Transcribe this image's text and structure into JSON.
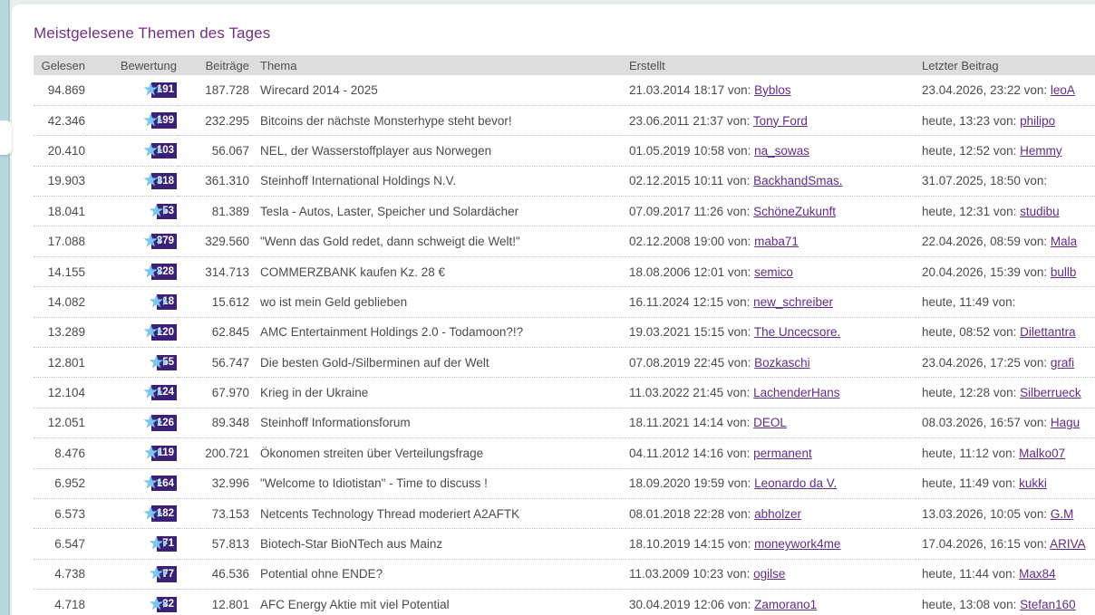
{
  "page": {
    "title": "Meistgelesene Themen des Tages"
  },
  "colors": {
    "title_purple": "#733080",
    "link_purple": "#632c87",
    "badge_bg": "#3b2077",
    "star_blue": "#7cc5f0",
    "rail_teal": "#b7d9dd",
    "header_bg": "#dcdddc"
  },
  "icons": {
    "rating_star": "star-icon"
  },
  "table": {
    "columns": [
      "Gelesen",
      "Bewertung",
      "Beiträge",
      "Thema",
      "Erstellt",
      "Letzter Beitrag"
    ],
    "von_label": "von:",
    "rows": [
      {
        "gelesen": "94.869",
        "rating": "191",
        "beitraege": "187.728",
        "thema": "Wirecard 2014 - 2025",
        "erstellt_date": "21.03.2014 18:17",
        "erstellt_user": "Byblos",
        "letzter_date": "23.04.2026, 23:22",
        "letzter_user": "leoA"
      },
      {
        "gelesen": "42.346",
        "rating": "199",
        "beitraege": "232.295",
        "thema": "Bitcoins der nächste Monsterhype steht bevor!",
        "erstellt_date": "23.06.2011 21:37",
        "erstellt_user": "Tony Ford",
        "letzter_date": "heute, 13:23",
        "letzter_user": "philipo"
      },
      {
        "gelesen": "20.410",
        "rating": "103",
        "beitraege": "56.067",
        "thema": "NEL, der Wasserstoffplayer aus Norwegen",
        "erstellt_date": "01.05.2019 10:58",
        "erstellt_user": "na_sowas",
        "letzter_date": "heute, 12:52",
        "letzter_user": "Hemmy"
      },
      {
        "gelesen": "19.903",
        "rating": "318",
        "beitraege": "361.310",
        "thema": "Steinhoff International Holdings N.V.",
        "erstellt_date": "02.12.2015 10:11",
        "erstellt_user": "BackhandSmas.",
        "letzter_date": "31.07.2025, 18:50",
        "letzter_user": ""
      },
      {
        "gelesen": "18.041",
        "rating": "53",
        "beitraege": "81.389",
        "thema": "Tesla - Autos, Laster, Speicher und Solardächer",
        "erstellt_date": "07.09.2017 11:26",
        "erstellt_user": "SchöneZukunft",
        "letzter_date": "heute, 12:31",
        "letzter_user": "studibu"
      },
      {
        "gelesen": "17.088",
        "rating": "379",
        "beitraege": "329.560",
        "thema": "\"Wenn das Gold redet, dann schweigt die Welt!\"",
        "erstellt_date": "02.12.2008 19:00",
        "erstellt_user": "maba71",
        "letzter_date": "22.04.2026, 08:59",
        "letzter_user": "Mala"
      },
      {
        "gelesen": "14.155",
        "rating": "328",
        "beitraege": "314.713",
        "thema": "COMMERZBANK kaufen Kz. 28 €",
        "erstellt_date": "18.08.2006 12:01",
        "erstellt_user": "semico",
        "letzter_date": "20.04.2026, 15:39",
        "letzter_user": "bullb"
      },
      {
        "gelesen": "14.082",
        "rating": "18",
        "beitraege": "15.612",
        "thema": "wo ist mein Geld geblieben",
        "erstellt_date": "16.11.2024 12:15",
        "erstellt_user": "new_schreiber",
        "letzter_date": "heute, 11:49",
        "letzter_user": ""
      },
      {
        "gelesen": "13.289",
        "rating": "120",
        "beitraege": "62.845",
        "thema": "AMC Entertainment Holdings 2.0 - Todamoon?!?",
        "erstellt_date": "19.03.2021 15:15",
        "erstellt_user": "The Uncecsore.",
        "letzter_date": "heute, 08:52",
        "letzter_user": "Dilettantra"
      },
      {
        "gelesen": "12.801",
        "rating": "55",
        "beitraege": "56.747",
        "thema": "Die besten Gold-/Silberminen auf der Welt",
        "erstellt_date": "07.08.2019 22:45",
        "erstellt_user": "Bozkaschi",
        "letzter_date": "23.04.2026, 17:25",
        "letzter_user": "grafi"
      },
      {
        "gelesen": "12.104",
        "rating": "124",
        "beitraege": "67.970",
        "thema": "Krieg in der Ukraine",
        "erstellt_date": "11.03.2022 21:45",
        "erstellt_user": "LachenderHans",
        "letzter_date": "heute, 12:28",
        "letzter_user": "Silberrueck"
      },
      {
        "gelesen": "12.051",
        "rating": "126",
        "beitraege": "89.348",
        "thema": "Steinhoff Informationsforum",
        "erstellt_date": "18.11.2021 14:14",
        "erstellt_user": "DEOL",
        "letzter_date": "08.03.2026, 16:57",
        "letzter_user": "Hagu"
      },
      {
        "gelesen": "8.476",
        "rating": "119",
        "beitraege": "200.721",
        "thema": "Ökonomen streiten über Verteilungsfrage",
        "erstellt_date": "04.11.2012 14:16",
        "erstellt_user": "permanent",
        "letzter_date": "heute, 11:12",
        "letzter_user": "Malko07"
      },
      {
        "gelesen": "6.952",
        "rating": "164",
        "beitraege": "32.996",
        "thema": "\"Welcome to Idiotistan\" - Time to discuss !",
        "erstellt_date": "18.09.2020 19:59",
        "erstellt_user": "Leonardo da V.",
        "letzter_date": "heute, 11:49",
        "letzter_user": "kukki"
      },
      {
        "gelesen": "6.573",
        "rating": "182",
        "beitraege": "73.153",
        "thema": "Netcents Technology Thread moderiert A2AFTK",
        "erstellt_date": "08.01.2018 22:28",
        "erstellt_user": "abholzer",
        "letzter_date": "13.03.2026, 10:05",
        "letzter_user": "G.M"
      },
      {
        "gelesen": "6.547",
        "rating": "71",
        "beitraege": "57.813",
        "thema": "Biotech-Star BioNTech aus Mainz",
        "erstellt_date": "18.10.2019 14:15",
        "erstellt_user": "moneywork4me",
        "letzter_date": "17.04.2026, 16:15",
        "letzter_user": "ARIVA"
      },
      {
        "gelesen": "4.738",
        "rating": "77",
        "beitraege": "46.536",
        "thema": "Potential ohne ENDE?",
        "erstellt_date": "11.03.2009 10:23",
        "erstellt_user": "ogilse",
        "letzter_date": "heute, 11:44",
        "letzter_user": "Max84"
      },
      {
        "gelesen": "4.718",
        "rating": "32",
        "beitraege": "12.801",
        "thema": "AFC Energy Aktie mit viel Potential",
        "erstellt_date": "30.04.2019 12:06",
        "erstellt_user": "Zamorano1",
        "letzter_date": "heute, 13:08",
        "letzter_user": "Stefan160"
      }
    ]
  }
}
